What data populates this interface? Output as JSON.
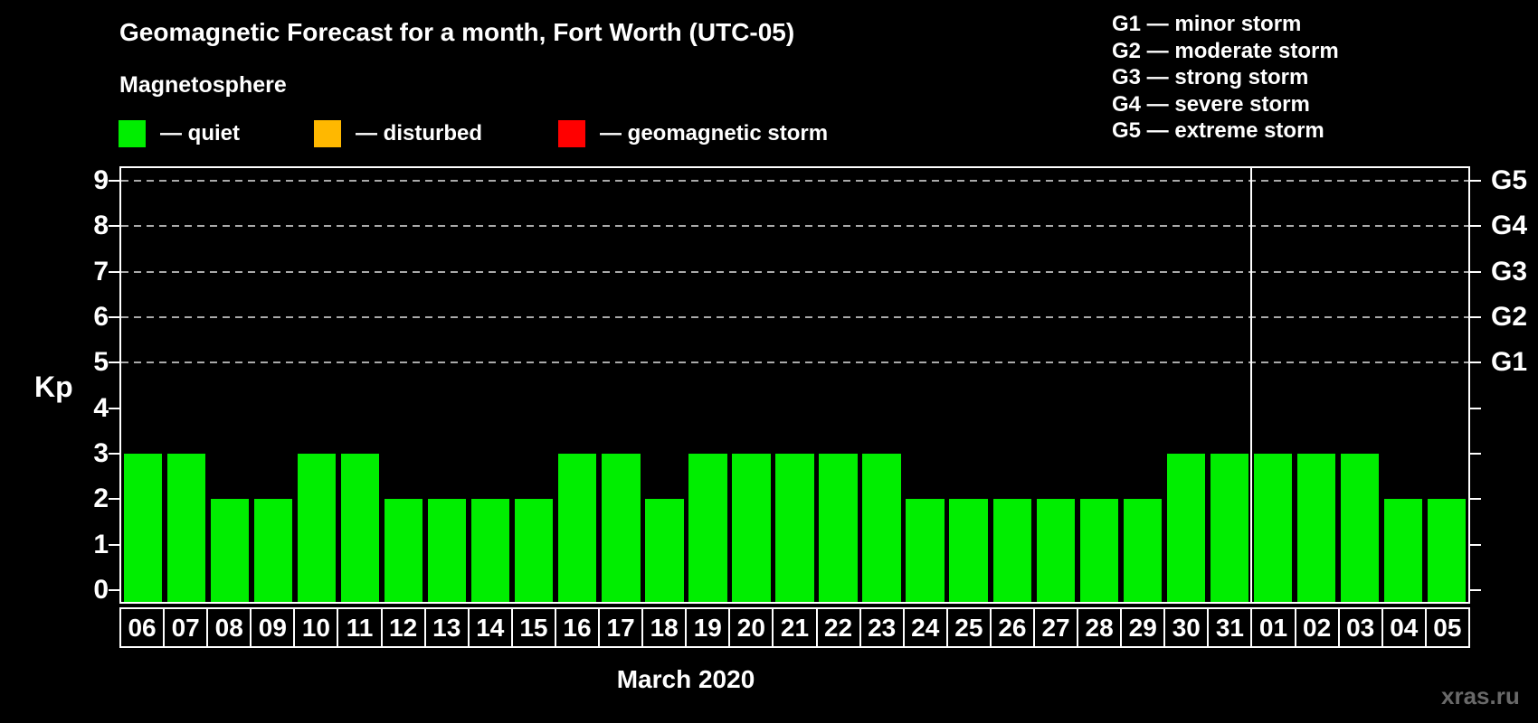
{
  "title": "Geomagnetic Forecast for a month, Fort Worth (UTC-05)",
  "subtitle": "Magnetosphere",
  "condition_legend": [
    {
      "id": "quiet",
      "label": "— quiet",
      "color": "#00ee00"
    },
    {
      "id": "disturbed",
      "label": "— disturbed",
      "color": "#ffb800"
    },
    {
      "id": "storm",
      "label": "— geomagnetic storm",
      "color": "#ff0000"
    }
  ],
  "storm_scale_legend": [
    "G1 — minor storm",
    "G2 — moderate storm",
    "G3 — strong storm",
    "G4 — severe storm",
    "G5 — extreme storm"
  ],
  "watermark": "xras.ru",
  "chart_data": {
    "type": "bar",
    "title": "Geomagnetic Forecast for a month, Fort Worth (UTC-05)",
    "xlabel": "March 2020",
    "ylabel": "Kp",
    "ylim": [
      0,
      9.3
    ],
    "y_ticks": [
      0,
      1,
      2,
      3,
      4,
      5,
      6,
      7,
      8,
      9
    ],
    "categories": [
      "06",
      "07",
      "08",
      "09",
      "10",
      "11",
      "12",
      "13",
      "14",
      "15",
      "16",
      "17",
      "18",
      "19",
      "20",
      "21",
      "22",
      "23",
      "24",
      "25",
      "26",
      "27",
      "28",
      "29",
      "30",
      "31",
      "01",
      "02",
      "03",
      "04",
      "05"
    ],
    "values": [
      3,
      3,
      2,
      2,
      3,
      3,
      2,
      2,
      2,
      2,
      3,
      3,
      2,
      3,
      3,
      3,
      3,
      3,
      2,
      2,
      2,
      2,
      2,
      2,
      3,
      3,
      3,
      3,
      3,
      2,
      2
    ],
    "bar_color": "#00ee00",
    "gridlines_at_kp": [
      5,
      6,
      7,
      8,
      9
    ],
    "gridline_color": "#aaaaaa",
    "grid": "horizontal-dashed",
    "right_axis": [
      {
        "kp": 5,
        "label": "G1"
      },
      {
        "kp": 6,
        "label": "G2"
      },
      {
        "kp": 7,
        "label": "G3"
      },
      {
        "kp": 8,
        "label": "G4"
      },
      {
        "kp": 9,
        "label": "G5"
      }
    ],
    "month_separator_before": "01",
    "legend_position": "top-left"
  }
}
